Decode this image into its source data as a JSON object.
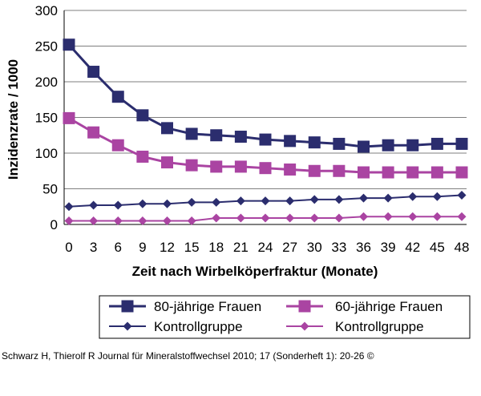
{
  "chart_data": {
    "type": "line",
    "title": "",
    "xlabel": "Zeit nach Wirbelköperfraktur (Monate)",
    "ylabel": "Inzidenzrate / 1000",
    "x": [
      0,
      3,
      6,
      9,
      12,
      15,
      18,
      21,
      24,
      27,
      30,
      33,
      36,
      39,
      42,
      45,
      48
    ],
    "xticks": [
      "0",
      "3",
      "6",
      "9",
      "12",
      "15",
      "18",
      "21",
      "24",
      "27",
      "30",
      "33",
      "36",
      "39",
      "42",
      "45",
      "48"
    ],
    "ylim": [
      0,
      300
    ],
    "yticks": [
      "0",
      "50",
      "100",
      "150",
      "200",
      "250",
      "300"
    ],
    "grid": "horizontal",
    "legend_position": "bottom",
    "series": [
      {
        "name": "80-jährige Frauen",
        "color": "#2b2d6e",
        "marker": "square",
        "values": [
          252,
          214,
          179,
          153,
          135,
          127,
          125,
          123,
          119,
          117,
          115,
          113,
          109,
          111,
          111,
          113,
          113
        ]
      },
      {
        "name": "60-jährige Frauen",
        "color": "#aa44a2",
        "marker": "square",
        "values": [
          149,
          129,
          111,
          95,
          87,
          83,
          81,
          81,
          79,
          77,
          75,
          75,
          73,
          73,
          73,
          73,
          73
        ]
      },
      {
        "name": "Kontrollgruppe",
        "color": "#2b2d6e",
        "marker": "diamond",
        "values": [
          25,
          27,
          27,
          29,
          29,
          31,
          31,
          33,
          33,
          33,
          35,
          35,
          37,
          37,
          39,
          39,
          41
        ]
      },
      {
        "name": "Kontrollgruppe",
        "color": "#aa44a2",
        "marker": "diamond",
        "values": [
          5,
          5,
          5,
          5,
          5,
          5,
          9,
          9,
          9,
          9,
          9,
          9,
          11,
          11,
          11,
          11,
          11
        ]
      }
    ]
  },
  "credit": "Schwarz H, Thierolf R Journal für Mineralstoffwechsel 2010; 17 (Sonderheft 1): 20-26 ©"
}
